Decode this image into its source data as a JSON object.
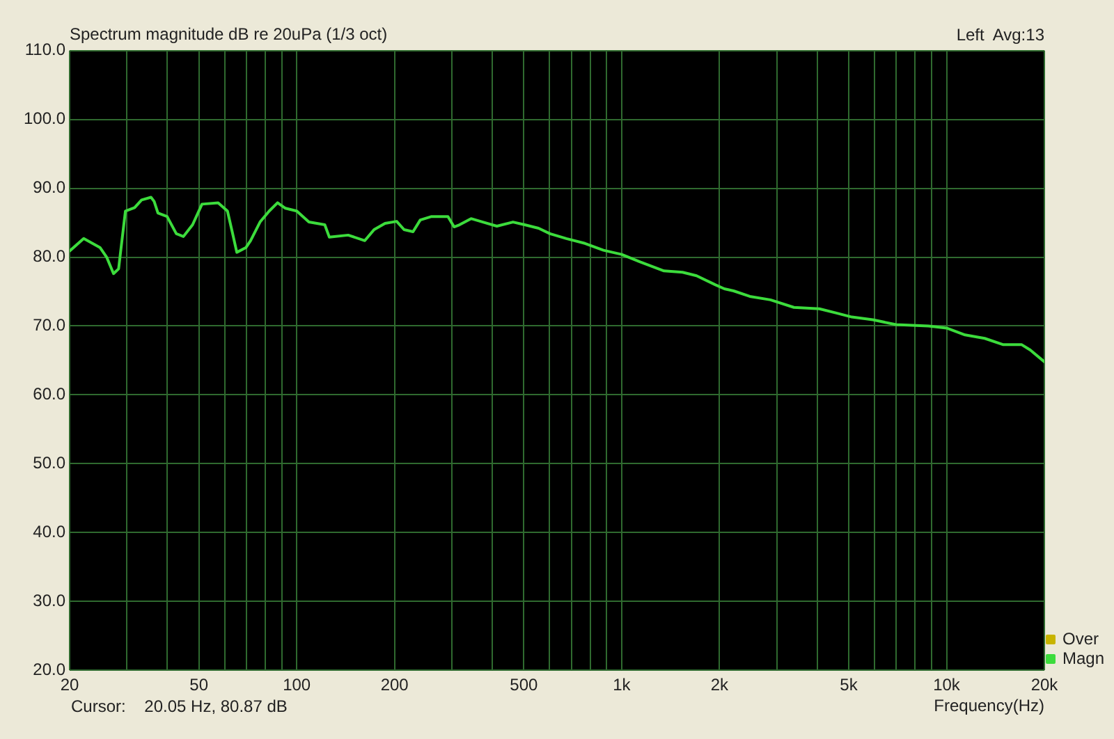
{
  "chart_data": {
    "type": "line",
    "title": "Spectrum magnitude dB re 20uPa (1/3 oct)",
    "xlabel": "Frequency(Hz)",
    "annotations": [
      "Left  Avg:13",
      "Cursor:    20.05 Hz, 80.87 dB"
    ],
    "x": [
      20,
      22.1,
      24.8,
      26,
      27.3,
      28.3,
      29.7,
      31.7,
      33.3,
      35.6,
      36.4,
      37.4,
      39.9,
      42.6,
      44.8,
      47.8,
      51.1,
      57.3,
      61.2,
      63.3,
      65.4,
      69.8,
      72.1,
      77.1,
      82.3,
      87.3,
      92.3,
      100,
      109,
      122,
      126,
      144,
      162,
      173,
      187,
      203,
      214,
      228,
      240,
      260,
      292,
      305,
      317,
      344,
      374,
      413,
      463,
      503,
      555,
      602,
      676,
      771,
      879,
      1000,
      1140,
      1350,
      1540,
      1700,
      1940,
      2070,
      2210,
      2480,
      2870,
      3390,
      4060,
      4560,
      5110,
      5930,
      6990,
      8800,
      10000,
      11400,
      13100,
      14900,
      17000,
      18100,
      20000
    ],
    "series": [
      {
        "name": "Over",
        "color": "#c8b400",
        "values": [
          null,
          null,
          null,
          null,
          null,
          null,
          null,
          null,
          null,
          null,
          null,
          null,
          null,
          null,
          null,
          null,
          null,
          null,
          null,
          null,
          null,
          null,
          null,
          null,
          null,
          null,
          null,
          null,
          null,
          null,
          null,
          null,
          null,
          null,
          null,
          null,
          null,
          null,
          null,
          null,
          null,
          null,
          null,
          null,
          null,
          null,
          null,
          null,
          null,
          null,
          null,
          null,
          null,
          null,
          null,
          null,
          null,
          null,
          null,
          null,
          null,
          null,
          null,
          null,
          null,
          null,
          null,
          null,
          null,
          null,
          null,
          null,
          null,
          null,
          null,
          null,
          null
        ]
      },
      {
        "name": "Magn",
        "color": "#3cdc3c",
        "values": [
          80.9,
          82.7,
          81.4,
          80.0,
          77.6,
          78.3,
          86.7,
          87.2,
          88.3,
          88.7,
          88.1,
          86.4,
          85.9,
          83.4,
          83.0,
          84.7,
          87.7,
          87.9,
          86.7,
          83.7,
          80.7,
          81.4,
          82.4,
          85.1,
          86.7,
          87.9,
          87.1,
          86.7,
          85.1,
          84.7,
          82.9,
          83.2,
          82.4,
          84.0,
          84.9,
          85.2,
          84.0,
          83.7,
          85.4,
          85.9,
          85.9,
          84.4,
          84.7,
          85.6,
          85.1,
          84.5,
          85.1,
          84.7,
          84.2,
          83.4,
          82.7,
          82.0,
          81.0,
          80.4,
          79.3,
          78.0,
          77.8,
          77.3,
          76.0,
          75.4,
          75.1,
          74.3,
          73.8,
          72.7,
          72.5,
          71.9,
          71.3,
          70.9,
          70.2,
          70.0,
          69.7,
          68.7,
          68.2,
          67.3,
          67.3,
          66.5,
          64.8
        ]
      }
    ],
    "xlim": [
      20,
      20000
    ],
    "ylim": [
      20,
      110
    ],
    "xticks": [
      20,
      {
        "value": 30,
        "label": null
      },
      {
        "value": 40,
        "label": null
      },
      50,
      {
        "value": 60,
        "label": null
      },
      {
        "value": 70,
        "label": null
      },
      {
        "value": 80,
        "label": null
      },
      {
        "value": 90,
        "label": null
      },
      100,
      200,
      {
        "value": 300,
        "label": null
      },
      {
        "value": 400,
        "label": null
      },
      500,
      {
        "value": 600,
        "label": null
      },
      {
        "value": 700,
        "label": null
      },
      {
        "value": 800,
        "label": null
      },
      {
        "value": 900,
        "label": null
      },
      {
        "value": 1000,
        "label": "1k"
      },
      {
        "value": 2000,
        "label": "2k"
      },
      {
        "value": 3000,
        "label": null
      },
      {
        "value": 4000,
        "label": null
      },
      {
        "value": 5000,
        "label": "5k"
      },
      {
        "value": 6000,
        "label": null
      },
      {
        "value": 7000,
        "label": null
      },
      {
        "value": 8000,
        "label": null
      },
      {
        "value": 9000,
        "label": null
      },
      {
        "value": 10000,
        "label": "10k"
      },
      {
        "value": 20000,
        "label": "20k"
      }
    ],
    "yticks": [
      {
        "value": 20,
        "label": "20.0"
      },
      {
        "value": 30,
        "label": "30.0"
      },
      {
        "value": 40,
        "label": "40.0"
      },
      {
        "value": 50,
        "label": "50.0"
      },
      {
        "value": 60,
        "label": "60.0"
      },
      {
        "value": 70,
        "label": "70.0"
      },
      {
        "value": 80,
        "label": "80.0"
      },
      {
        "value": 90,
        "label": "90.0"
      },
      {
        "value": 100,
        "label": "100.0"
      },
      {
        "value": 110,
        "label": "110.0"
      }
    ],
    "log": "x",
    "grid": true,
    "legend": "bottom right",
    "marker": "none"
  }
}
